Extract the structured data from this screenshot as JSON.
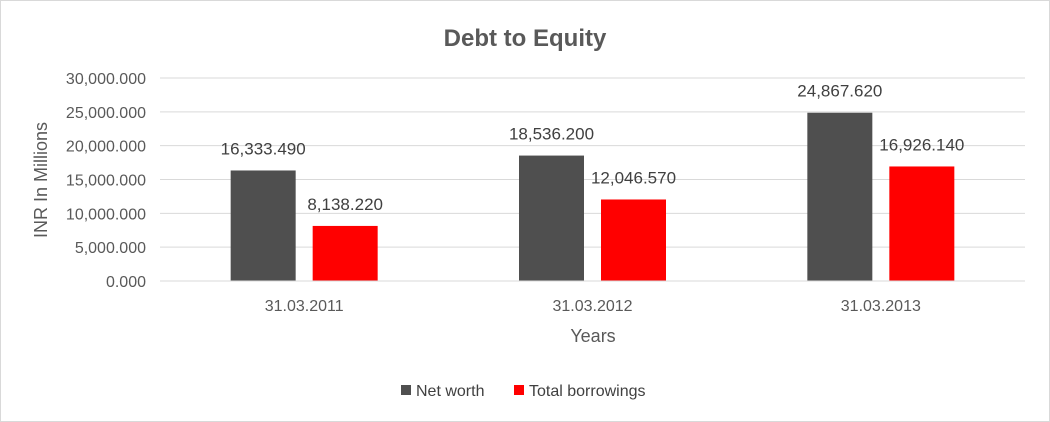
{
  "chart_data": {
    "type": "bar",
    "title": "Debt to Equity",
    "xlabel": "Years",
    "ylabel": "INR In Millions",
    "categories": [
      "31.03.2011",
      "31.03.2012",
      "31.03.2013"
    ],
    "series": [
      {
        "name": "Net worth",
        "color": "#4f4f4f",
        "values": [
          16333.49,
          18536.2,
          24867.62
        ],
        "labels": [
          "16,333.490",
          "18,536.200",
          "24,867.620"
        ]
      },
      {
        "name": "Total borrowings",
        "color": "#ff0000",
        "values": [
          8138.22,
          12046.57,
          16926.14
        ],
        "labels": [
          "8,138.220",
          "12,046.570",
          "16,926.140"
        ]
      }
    ],
    "ylim": [
      0,
      30000
    ],
    "yticks": [
      0,
      5000,
      10000,
      15000,
      20000,
      25000,
      30000
    ],
    "ytick_labels": [
      "0.000",
      "5,000.000",
      "10,000.000",
      "15,000.000",
      "20,000.000",
      "25,000.000",
      "30,000.000"
    ],
    "grid": true,
    "legend_position": "bottom"
  }
}
